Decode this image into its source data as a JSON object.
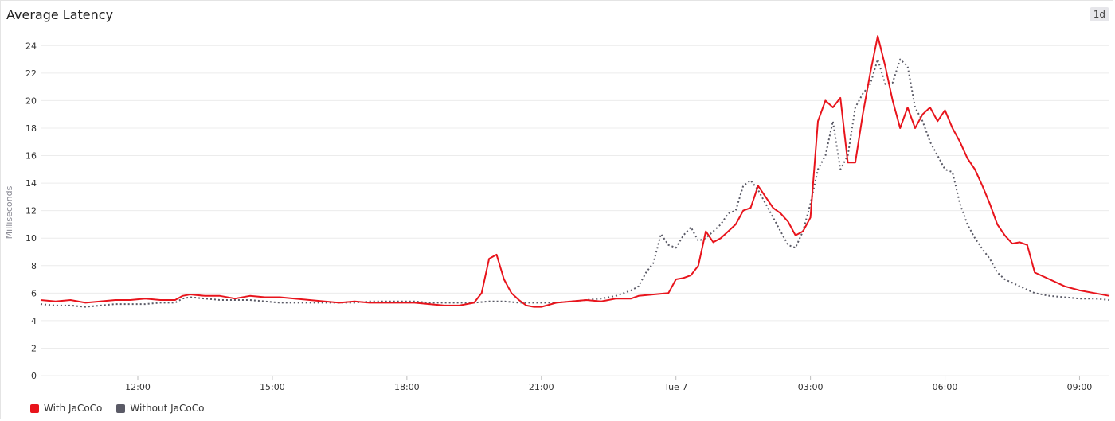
{
  "panel": {
    "title": "Average Latency",
    "time_range": "1d"
  },
  "chart_data": {
    "type": "line",
    "title": "Average Latency",
    "xlabel": "",
    "ylabel": "Milliseconds",
    "ylim": [
      0,
      25
    ],
    "yticks": [
      0,
      2,
      4,
      6,
      8,
      10,
      12,
      14,
      16,
      18,
      20,
      22,
      24
    ],
    "xlim": [
      "09:50",
      "09:40 +1d"
    ],
    "xticks": [
      "12:00",
      "15:00",
      "18:00",
      "21:00",
      "Tue 7",
      "03:00",
      "06:00",
      "09:00"
    ],
    "grid": true,
    "legend": "bottom-left",
    "series": [
      {
        "name": "With JaCoCo",
        "color": "#e8141c",
        "style": "solid",
        "x": [
          "09:50",
          "10:10",
          "10:30",
          "10:50",
          "11:10",
          "11:30",
          "11:50",
          "12:10",
          "12:30",
          "12:50",
          "13:00",
          "13:10",
          "13:30",
          "13:50",
          "14:10",
          "14:30",
          "14:50",
          "15:10",
          "15:30",
          "15:50",
          "16:10",
          "16:30",
          "16:50",
          "17:10",
          "17:30",
          "17:50",
          "18:10",
          "18:30",
          "18:50",
          "19:10",
          "19:30",
          "19:40",
          "19:50",
          "20:00",
          "20:10",
          "20:20",
          "20:30",
          "20:40",
          "20:50",
          "21:00",
          "21:20",
          "21:40",
          "22:00",
          "22:20",
          "22:40",
          "23:00",
          "23:10",
          "23:30",
          "23:50",
          "23:55",
          "00:00",
          "00:10",
          "00:20",
          "00:30",
          "00:40",
          "00:50",
          "01:00",
          "01:10",
          "01:20",
          "01:30",
          "01:40",
          "01:50",
          "02:00",
          "02:10",
          "02:20",
          "02:30",
          "02:40",
          "02:50",
          "03:00",
          "03:10",
          "03:20",
          "03:30",
          "03:40",
          "03:50",
          "04:00",
          "04:10",
          "04:20",
          "04:30",
          "04:40",
          "04:50",
          "05:00",
          "05:10",
          "05:20",
          "05:30",
          "05:40",
          "05:50",
          "06:00",
          "06:10",
          "06:20",
          "06:30",
          "06:40",
          "06:50",
          "07:00",
          "07:10",
          "07:20",
          "07:30",
          "07:40",
          "07:50",
          "08:00",
          "08:20",
          "08:40",
          "09:00",
          "09:20",
          "09:40"
        ],
        "y": [
          5.5,
          5.4,
          5.5,
          5.3,
          5.4,
          5.5,
          5.5,
          5.6,
          5.5,
          5.5,
          5.8,
          5.9,
          5.8,
          5.8,
          5.6,
          5.8,
          5.7,
          5.7,
          5.6,
          5.5,
          5.4,
          5.3,
          5.4,
          5.3,
          5.3,
          5.3,
          5.3,
          5.2,
          5.1,
          5.1,
          5.3,
          6.0,
          8.5,
          8.8,
          7.0,
          6.0,
          5.5,
          5.1,
          5.0,
          5.0,
          5.3,
          5.4,
          5.5,
          5.4,
          5.6,
          5.6,
          5.8,
          5.9,
          6.0,
          6.5,
          7.0,
          7.1,
          7.3,
          8.0,
          10.5,
          9.7,
          10.0,
          10.5,
          11.0,
          12.0,
          12.2,
          13.8,
          13.0,
          12.2,
          11.8,
          11.2,
          10.2,
          10.5,
          11.5,
          18.5,
          20.0,
          19.5,
          20.2,
          15.5,
          15.5,
          19.0,
          22.0,
          24.7,
          22.5,
          20.0,
          18.0,
          19.5,
          18.0,
          19.0,
          19.5,
          18.5,
          19.3,
          18.0,
          17.0,
          15.8,
          15.0,
          13.8,
          12.5,
          11.0,
          10.2,
          9.6,
          9.7,
          9.5,
          7.5,
          7.0,
          6.5,
          6.2,
          6.0,
          5.8
        ]
      },
      {
        "name": "Without JaCoCo",
        "color": "#5a5a66",
        "style": "dotted",
        "x": [
          "09:50",
          "10:10",
          "10:30",
          "10:50",
          "11:10",
          "11:30",
          "11:50",
          "12:10",
          "12:30",
          "12:50",
          "13:00",
          "13:10",
          "13:30",
          "13:50",
          "14:10",
          "14:30",
          "14:50",
          "15:10",
          "15:30",
          "15:50",
          "16:10",
          "16:30",
          "16:50",
          "17:10",
          "17:30",
          "17:50",
          "18:10",
          "18:30",
          "18:50",
          "19:10",
          "19:30",
          "19:50",
          "20:10",
          "20:30",
          "20:50",
          "21:00",
          "21:20",
          "21:40",
          "22:00",
          "22:20",
          "22:40",
          "23:00",
          "23:10",
          "23:20",
          "23:30",
          "23:40",
          "23:50",
          "00:00",
          "00:10",
          "00:20",
          "00:30",
          "00:40",
          "00:50",
          "01:00",
          "01:10",
          "01:20",
          "01:30",
          "01:40",
          "01:50",
          "02:00",
          "02:10",
          "02:20",
          "02:30",
          "02:40",
          "02:50",
          "03:00",
          "03:10",
          "03:20",
          "03:30",
          "03:40",
          "03:50",
          "04:00",
          "04:10",
          "04:20",
          "04:30",
          "04:40",
          "04:50",
          "05:00",
          "05:10",
          "05:20",
          "05:30",
          "05:40",
          "05:50",
          "06:00",
          "06:10",
          "06:20",
          "06:30",
          "06:40",
          "06:50",
          "07:00",
          "07:10",
          "07:20",
          "07:40",
          "08:00",
          "08:20",
          "08:40",
          "09:00",
          "09:20",
          "09:40"
        ],
        "y": [
          5.2,
          5.1,
          5.1,
          5.0,
          5.1,
          5.2,
          5.2,
          5.2,
          5.3,
          5.3,
          5.6,
          5.7,
          5.6,
          5.5,
          5.5,
          5.5,
          5.4,
          5.3,
          5.3,
          5.3,
          5.3,
          5.3,
          5.3,
          5.4,
          5.4,
          5.4,
          5.4,
          5.3,
          5.3,
          5.3,
          5.3,
          5.4,
          5.4,
          5.3,
          5.3,
          5.3,
          5.3,
          5.4,
          5.5,
          5.6,
          5.8,
          6.2,
          6.5,
          7.5,
          8.2,
          10.3,
          9.5,
          9.3,
          10.2,
          10.8,
          9.8,
          10.0,
          10.5,
          11.0,
          11.8,
          12.0,
          13.8,
          14.2,
          13.5,
          12.5,
          11.5,
          10.5,
          9.5,
          9.3,
          10.5,
          12.5,
          15.0,
          16.0,
          18.5,
          15.0,
          16.0,
          19.5,
          20.5,
          21.2,
          23.0,
          21.2,
          21.3,
          23.0,
          22.5,
          19.5,
          18.5,
          17.0,
          16.0,
          15.0,
          14.8,
          12.5,
          11.0,
          10.0,
          9.2,
          8.5,
          7.5,
          7.0,
          6.5,
          6.0,
          5.8,
          5.7,
          5.6,
          5.6,
          5.5
        ]
      }
    ]
  }
}
